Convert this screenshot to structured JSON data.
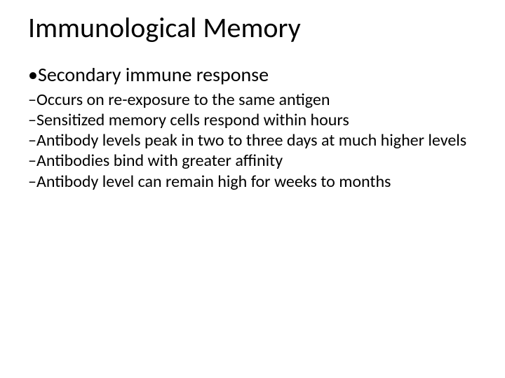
{
  "title": "Immunological Memory",
  "bullet": {
    "marker": "•",
    "text": "Secondary immune response"
  },
  "subpoints": [
    {
      "marker": "–",
      "text": "Occurs on re-exposure to the same antigen"
    },
    {
      "marker": "–",
      "text": "Sensitized memory cells respond within hours"
    },
    {
      "marker": "–",
      "text": "Antibody levels peak in two to three days at much higher levels"
    },
    {
      "marker": "–",
      "text": "Antibodies bind with greater affinity"
    },
    {
      "marker": "–",
      "text": "Antibody level can remain high for weeks to months"
    }
  ],
  "style": {
    "background_color": "#ffffff",
    "text_color": "#000000",
    "title_fontsize": 40,
    "level1_fontsize": 28,
    "level2_fontsize": 24,
    "font_family": "Calibri"
  }
}
